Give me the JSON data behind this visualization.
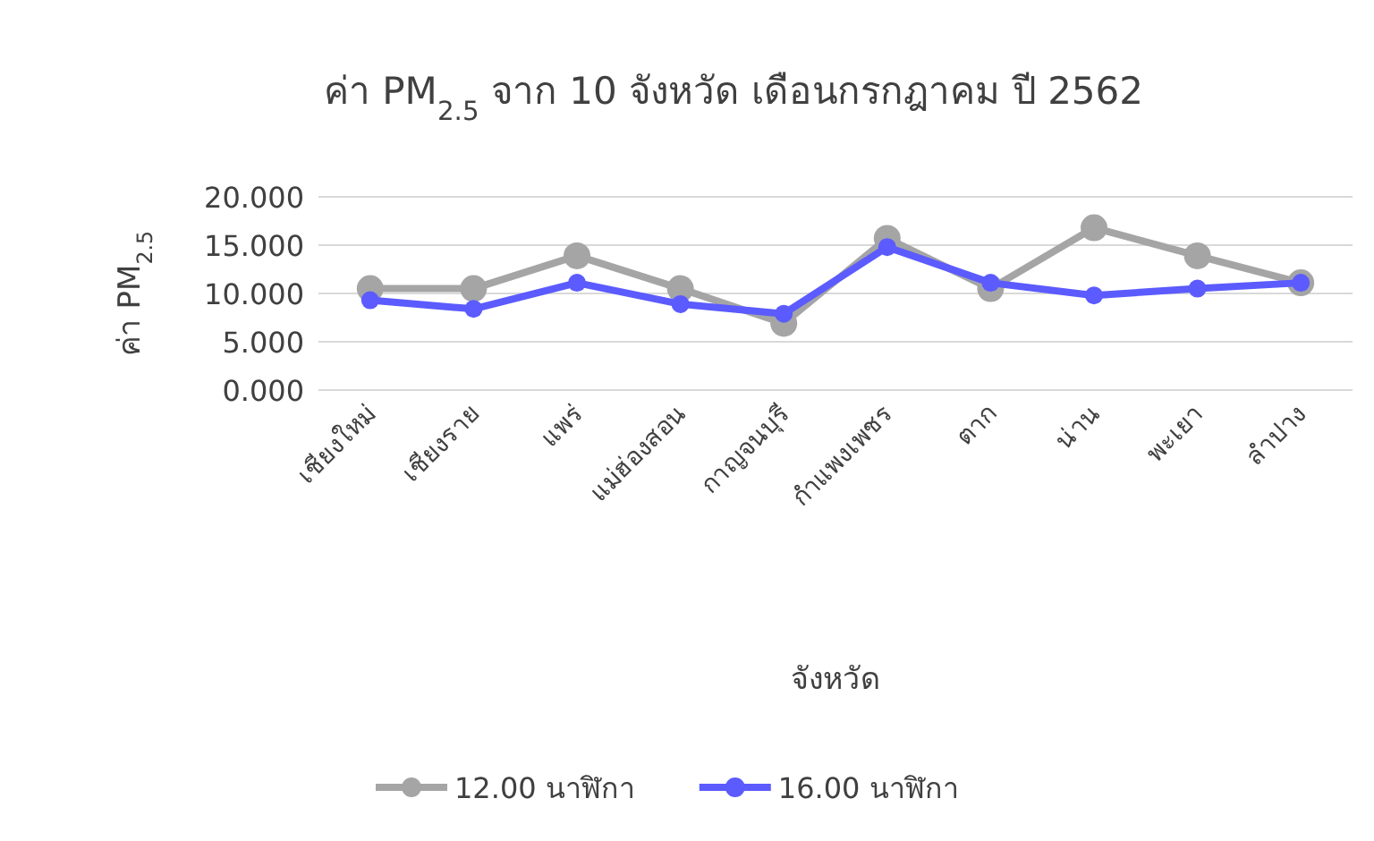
{
  "chart_data": {
    "type": "line",
    "title": "ค่า PM$_{2.5}$ จาก 10 จังหวัด เดือนกรกฎาคม ปี 2562",
    "xlabel": "จังหวัด",
    "ylabel": "ค่า PM$_{2.5}$",
    "categories": [
      "เชียงใหม่",
      "เชียงราย",
      "แพร่",
      "แม่ฮ่องสอน",
      "กาญจนบุรี",
      "กำแพงเพชร",
      "ตาก",
      "น่าน",
      "พะเยา",
      "ลำปาง"
    ],
    "series": [
      {
        "name": "12.00 นาฬิกา",
        "color": "#a5a5a5",
        "values": [
          10.5,
          10.5,
          13.9,
          10.5,
          6.9,
          15.7,
          10.5,
          16.8,
          13.9,
          11.1
        ]
      },
      {
        "name": "16.00 นาฬิกา",
        "color": "#5b5bff",
        "values": [
          9.3,
          8.4,
          11.1,
          8.9,
          7.9,
          14.8,
          11.1,
          9.8,
          10.5,
          11.1
        ]
      }
    ],
    "ylim": [
      0,
      20
    ],
    "yticks": [
      {
        "value": 0,
        "label": "0.000"
      },
      {
        "value": 5,
        "label": "5.000"
      },
      {
        "value": 10,
        "label": "10.000"
      },
      {
        "value": 15,
        "label": "15.000"
      },
      {
        "value": 20,
        "label": "20.000"
      }
    ],
    "grid": "y",
    "legend": "bottom",
    "marker": "circle",
    "line_style": "solid"
  }
}
